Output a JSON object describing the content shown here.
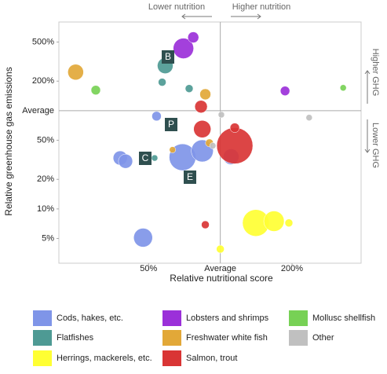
{
  "chart_data": {
    "type": "bubble",
    "x_label": "Relative nutritional score",
    "y_label": "Relative greenhouse gas emissions",
    "x_log": true,
    "y_log": true,
    "xlim": [
      21,
      390
    ],
    "ylim": [
      2.8,
      800
    ],
    "xticks": [
      {
        "value": 50,
        "label": "50%"
      },
      {
        "value": 100,
        "label": "Average"
      },
      {
        "value": 200,
        "label": "200%"
      }
    ],
    "yticks": [
      {
        "value": 5,
        "label": "5%"
      },
      {
        "value": 10,
        "label": "10%"
      },
      {
        "value": 20,
        "label": "20%"
      },
      {
        "value": 50,
        "label": "50%"
      },
      {
        "value": 100,
        "label": "Average"
      },
      {
        "value": 200,
        "label": "200%"
      },
      {
        "value": 500,
        "label": "500%"
      }
    ],
    "annotations": [
      "Lower nutrition",
      "Higher nutrition",
      "Higher GHG",
      "Lower GHG"
    ],
    "point_labels": [
      "B",
      "C",
      "E",
      "P"
    ],
    "series": [
      {
        "name": "Cods, hakes, etc.",
        "color": "#7f95e8",
        "x": [
          38,
          40,
          48.9,
          54,
          69.4,
          84,
          111,
          47.4
        ],
        "y": [
          33,
          30.6,
          30,
          88,
          33.6,
          39,
          34,
          5.1
        ],
        "sizes": [
          9,
          9,
          4,
          6,
          17,
          14,
          10,
          12
        ]
      },
      {
        "name": "Flatfishes",
        "color": "#4e9a94",
        "x": [
          58.7,
          57,
          74,
          53
        ],
        "y": [
          287,
          195,
          168,
          33
        ],
        "sizes": [
          10,
          5,
          5,
          4
        ]
      },
      {
        "name": "Herrings, mackerels, etc.",
        "color": "#ffff33",
        "x": [
          141,
          168,
          194,
          100
        ],
        "y": [
          7.2,
          7.5,
          7.2,
          3.9
        ],
        "sizes": [
          17,
          13,
          5,
          5
        ]
      },
      {
        "name": "Lobsters and shrimps",
        "color": "#9b30d9",
        "x": [
          70,
          77,
          187
        ],
        "y": [
          431,
          558,
          159
        ],
        "sizes": [
          13,
          7,
          6
        ]
      },
      {
        "name": "Freshwater white fish",
        "color": "#e2a838",
        "x": [
          24.7,
          86.5,
          63,
          90
        ],
        "y": [
          247,
          147,
          40,
          47
        ],
        "sizes": [
          10,
          7,
          4,
          5
        ]
      },
      {
        "name": "Salmon, trout",
        "color": "#d93535",
        "x": [
          83,
          84,
          115,
          115,
          86.5
        ],
        "y": [
          110,
          65,
          44,
          67,
          6.9
        ],
        "sizes": [
          8,
          11,
          23,
          6,
          5
        ]
      },
      {
        "name": "Mollusc shellfish",
        "color": "#77d155",
        "x": [
          30,
          328
        ],
        "y": [
          162,
          171
        ],
        "sizes": [
          6,
          4
        ]
      },
      {
        "name": "Other",
        "color": "#c0c0c0",
        "x": [
          101,
          93,
          236
        ],
        "y": [
          91,
          44,
          85
        ],
        "sizes": [
          4,
          4,
          4
        ]
      }
    ]
  }
}
